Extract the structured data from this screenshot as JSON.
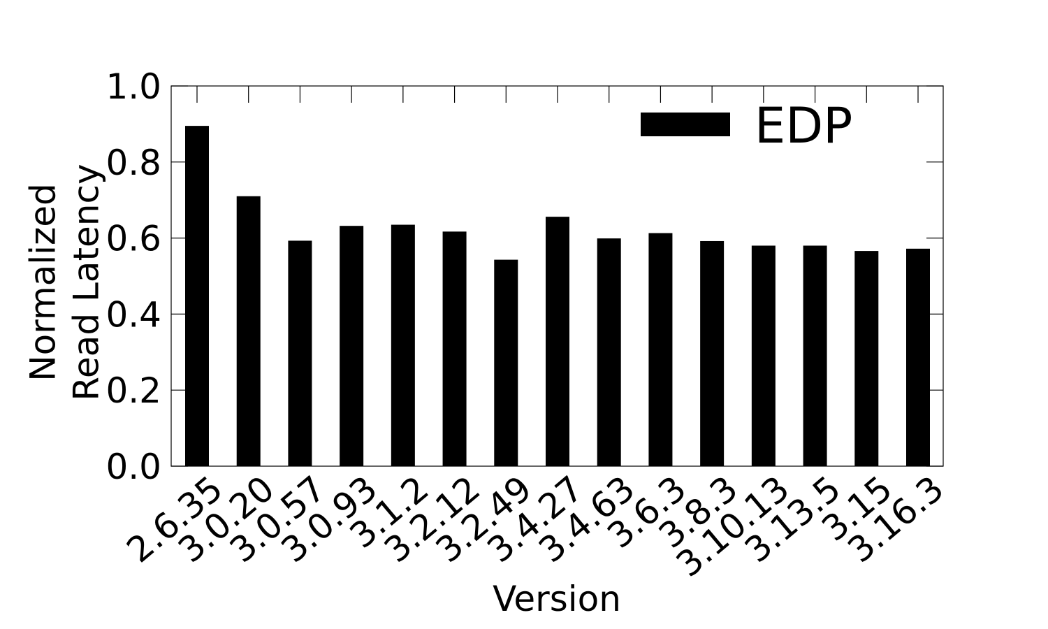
{
  "chart_data": {
    "type": "bar",
    "categories": [
      "2.6.35",
      "3.0.20",
      "3.0.57",
      "3.0.93",
      "3.1.2",
      "3.2.12",
      "3.2.49",
      "3.4.27",
      "3.4.63",
      "3.6.3",
      "3.8.3",
      "3.10.13",
      "3.13.5",
      "3.15",
      "3.16.3"
    ],
    "series": [
      {
        "name": "EDP",
        "values": [
          0.895,
          0.71,
          0.593,
          0.632,
          0.635,
          0.617,
          0.543,
          0.656,
          0.599,
          0.613,
          0.592,
          0.58,
          0.58,
          0.566,
          0.572
        ]
      }
    ],
    "xlabel": "Version",
    "ylabel": [
      "Normalized",
      "Read Latency"
    ],
    "ylim": [
      0.0,
      1.0
    ],
    "yticks": [
      "0.0",
      "0.2",
      "0.4",
      "0.6",
      "0.8",
      "1.0"
    ],
    "grid": false,
    "legend_position": "top-right",
    "bar_color": "#000000"
  }
}
